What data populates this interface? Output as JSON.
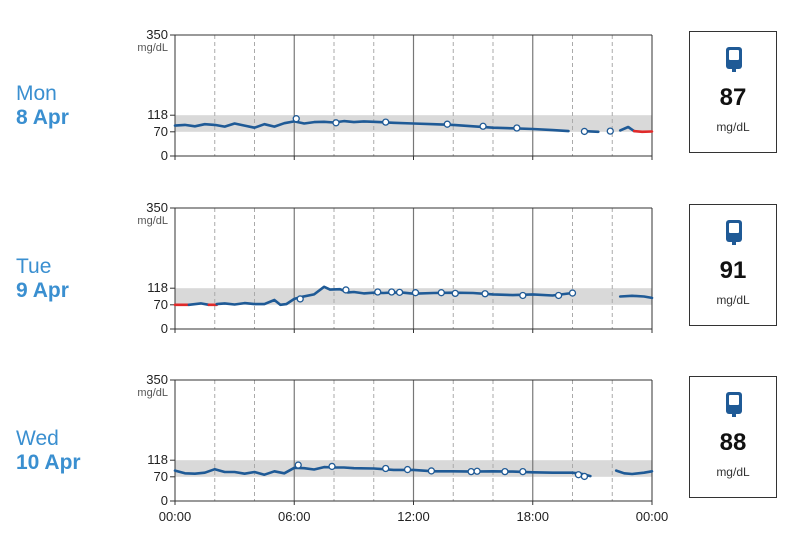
{
  "colors": {
    "line": "#1f5a96",
    "low": "#e02a2a",
    "target_band": "#d9d9d9",
    "day_text": "#3a8fd0",
    "device_icon": "#1f5a96"
  },
  "x_tick_labels": [
    "00:00",
    "06:00",
    "12:00",
    "18:00",
    "00:00"
  ],
  "chart_data": [
    {
      "type": "line",
      "day_name": "Mon",
      "day_date": "8 Apr",
      "ylim": [
        0,
        350
      ],
      "xlim": [
        0,
        24
      ],
      "y_tick_labels": [
        "350",
        "118",
        "70",
        "0"
      ],
      "y_unit": "mg/dL",
      "target_range": [
        70,
        118
      ],
      "series": [
        {
          "color": "line",
          "x": [
            0,
            0.5,
            1,
            1.5,
            2,
            2.5,
            3,
            3.5,
            4,
            4.5,
            5,
            5.5,
            6,
            6.5,
            7,
            7.5,
            8,
            8.5,
            9,
            9.5,
            10,
            11,
            12,
            13,
            14,
            15,
            16,
            17,
            18,
            19,
            19.8
          ],
          "y": [
            88,
            90,
            86,
            92,
            90,
            85,
            94,
            88,
            82,
            92,
            85,
            95,
            100,
            94,
            98,
            99,
            97,
            101,
            98,
            100,
            99,
            96,
            94,
            92,
            90,
            86,
            82,
            80,
            78,
            75,
            72
          ]
        },
        {
          "color": "line",
          "x": [
            20.5,
            21.3
          ],
          "y": [
            72,
            70
          ]
        },
        {
          "color": "line",
          "x": [
            22.4,
            22.8,
            23.1
          ],
          "y": [
            74,
            84,
            72
          ]
        },
        {
          "color": "low",
          "x": [
            23.1,
            23.5,
            24
          ],
          "y": [
            72,
            70,
            71
          ]
        }
      ],
      "points": [
        {
          "x": 6.1,
          "y": 108
        },
        {
          "x": 8.1,
          "y": 96
        },
        {
          "x": 10.6,
          "y": 98
        },
        {
          "x": 13.7,
          "y": 92
        },
        {
          "x": 15.5,
          "y": 86
        },
        {
          "x": 17.2,
          "y": 81
        },
        {
          "x": 20.6,
          "y": 71
        },
        {
          "x": 21.9,
          "y": 72
        }
      ],
      "latest_reading": {
        "value": "87",
        "unit": "mg/dL"
      }
    },
    {
      "type": "line",
      "day_name": "Tue",
      "day_date": "9 Apr",
      "ylim": [
        0,
        350
      ],
      "xlim": [
        0,
        24
      ],
      "y_tick_labels": [
        "350",
        "118",
        "70",
        "0"
      ],
      "y_unit": "mg/dL",
      "target_range": [
        70,
        118
      ],
      "series": [
        {
          "color": "low",
          "x": [
            0,
            0.7
          ],
          "y": [
            70,
            70
          ]
        },
        {
          "color": "line",
          "x": [
            0.7,
            1.3,
            1.7
          ],
          "y": [
            70,
            74,
            70
          ]
        },
        {
          "color": "low",
          "x": [
            1.7,
            2.1
          ],
          "y": [
            70,
            70
          ]
        },
        {
          "color": "line",
          "x": [
            2.1,
            2.5,
            3,
            3.5,
            4,
            4.5,
            5,
            5.3,
            5.6,
            6,
            6.3,
            7,
            7.5,
            7.8,
            8.3,
            8.7,
            9,
            9.5,
            10,
            10.5,
            11,
            11.5,
            12,
            13,
            14,
            15,
            16,
            17,
            18,
            19,
            20
          ],
          "y": [
            72,
            74,
            71,
            75,
            72,
            72,
            84,
            70,
            72,
            87,
            92,
            100,
            122,
            114,
            115,
            106,
            107,
            103,
            105,
            104,
            106,
            105,
            102,
            104,
            105,
            104,
            100,
            98,
            100,
            97,
            104
          ]
        },
        {
          "color": "line",
          "x": [
            22.4,
            23,
            23.6,
            24
          ],
          "y": [
            94,
            96,
            94,
            90
          ]
        }
      ],
      "points": [
        {
          "x": 6.3,
          "y": 87
        },
        {
          "x": 8.6,
          "y": 113
        },
        {
          "x": 10.2,
          "y": 107
        },
        {
          "x": 10.9,
          "y": 107
        },
        {
          "x": 11.3,
          "y": 106
        },
        {
          "x": 12.1,
          "y": 105
        },
        {
          "x": 13.4,
          "y": 105
        },
        {
          "x": 14.1,
          "y": 103
        },
        {
          "x": 15.6,
          "y": 102
        },
        {
          "x": 17.5,
          "y": 97
        },
        {
          "x": 19.3,
          "y": 97
        },
        {
          "x": 20,
          "y": 104
        }
      ],
      "latest_reading": {
        "value": "91",
        "unit": "mg/dL"
      }
    },
    {
      "type": "line",
      "day_name": "Wed",
      "day_date": "10 Apr",
      "ylim": [
        0,
        350
      ],
      "xlim": [
        0,
        24
      ],
      "y_tick_labels": [
        "350",
        "118",
        "70",
        "0"
      ],
      "y_unit": "mg/dL",
      "target_range": [
        70,
        118
      ],
      "series": [
        {
          "color": "line",
          "x": [
            0,
            0.5,
            1,
            1.5,
            2,
            2.5,
            3,
            3.5,
            4,
            4.5,
            5,
            5.5,
            6,
            6.5,
            7,
            7.5,
            8,
            8.5,
            9,
            10,
            11,
            12,
            13,
            14,
            15,
            16,
            17,
            18,
            19,
            20,
            20.5,
            20.9
          ],
          "y": [
            88,
            80,
            79,
            82,
            92,
            84,
            84,
            79,
            84,
            76,
            86,
            80,
            96,
            95,
            91,
            98,
            97,
            97,
            95,
            94,
            90,
            90,
            86,
            86,
            85,
            86,
            85,
            83,
            82,
            82,
            78,
            72
          ]
        },
        {
          "color": "line",
          "x": [
            22.2,
            22.6,
            23,
            23.6,
            24
          ],
          "y": [
            88,
            80,
            78,
            82,
            86
          ]
        }
      ],
      "points": [
        {
          "x": 6.2,
          "y": 104
        },
        {
          "x": 7.9,
          "y": 100
        },
        {
          "x": 10.6,
          "y": 94
        },
        {
          "x": 11.7,
          "y": 91
        },
        {
          "x": 12.9,
          "y": 87
        },
        {
          "x": 14.9,
          "y": 85
        },
        {
          "x": 15.2,
          "y": 86
        },
        {
          "x": 16.6,
          "y": 85
        },
        {
          "x": 17.5,
          "y": 85
        },
        {
          "x": 20.3,
          "y": 76
        },
        {
          "x": 20.6,
          "y": 71
        }
      ],
      "latest_reading": {
        "value": "88",
        "unit": "mg/dL"
      }
    }
  ]
}
